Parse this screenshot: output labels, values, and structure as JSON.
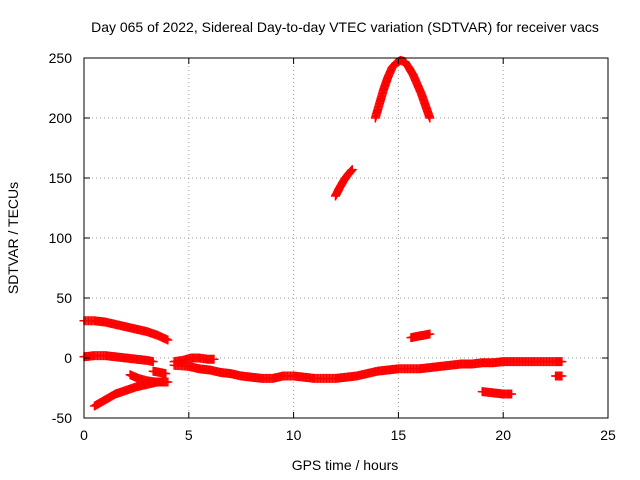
{
  "chart_data": {
    "type": "scatter",
    "title": "Day 065 of 2022, Sidereal Day-to-day VTEC variation (SDTVAR) for receiver vacs",
    "xlabel": "GPS time / hours",
    "ylabel": "SDTVAR / TECUs",
    "xlim": [
      0,
      25
    ],
    "ylim": [
      -50,
      250
    ],
    "xticks": [
      0,
      5,
      10,
      15,
      20,
      25
    ],
    "yticks": [
      -50,
      0,
      50,
      100,
      150,
      200,
      250
    ],
    "grid": true,
    "marker": "plus",
    "colors": {
      "series": "#ff0000",
      "grid": "#a0a0a0",
      "axes": "#000000"
    },
    "series": [
      {
        "x": [
          0.0,
          0.5,
          1.0,
          1.5,
          2.0,
          2.5,
          3.0,
          3.5,
          4.0
        ],
        "y": [
          31,
          31,
          30,
          28,
          26,
          24,
          22,
          19,
          15
        ]
      },
      {
        "x": [
          0.0,
          0.5,
          1.0,
          1.5,
          2.0,
          2.5,
          3.0,
          3.3
        ],
        "y": [
          1,
          2,
          2,
          1,
          0,
          -1,
          -2,
          -3
        ]
      },
      {
        "x": [
          0.5,
          1.0,
          1.5,
          2.0,
          2.5,
          3.0,
          3.5,
          4.0
        ],
        "y": [
          -40,
          -35,
          -30,
          -27,
          -24,
          -22,
          -20,
          -20
        ]
      },
      {
        "x": [
          2.2,
          2.6,
          3.0,
          3.4,
          3.8
        ],
        "y": [
          -14,
          -17,
          -19,
          -20,
          -20
        ]
      },
      {
        "x": [
          3.3,
          3.6,
          3.9
        ],
        "y": [
          -11,
          -12,
          -13
        ]
      },
      {
        "x": [
          4.3,
          4.7,
          5.1,
          5.5,
          5.9,
          6.2
        ],
        "y": [
          -3,
          -2,
          0,
          0,
          -1,
          -1
        ]
      },
      {
        "x": [
          4.3,
          5.0,
          5.5,
          6.0,
          6.5,
          7.0,
          7.5,
          8.0,
          8.5,
          9.0,
          9.5,
          10.0,
          10.5,
          11.0,
          11.5,
          12.0,
          12.5,
          13.0,
          13.5,
          14.0,
          14.5,
          15.0,
          15.5,
          16.0,
          16.5,
          17.0,
          17.5,
          18.0,
          18.5,
          19.0,
          19.5,
          20.0,
          20.5,
          21.0,
          21.5,
          22.0,
          22.5,
          22.8
        ],
        "y": [
          -6,
          -7,
          -9,
          -10,
          -12,
          -13,
          -15,
          -16,
          -17,
          -17,
          -15,
          -15,
          -16,
          -17,
          -17,
          -17,
          -16,
          -15,
          -13,
          -11,
          -10,
          -9,
          -9,
          -9,
          -8,
          -7,
          -6,
          -5,
          -5,
          -4,
          -4,
          -3,
          -3,
          -3,
          -3,
          -3,
          -3,
          -3
        ]
      },
      {
        "x": [
          12.0,
          12.2,
          12.4,
          12.6,
          12.8
        ],
        "y": [
          135,
          142,
          148,
          153,
          157
        ]
      },
      {
        "x": [
          13.9,
          14.1,
          14.3,
          14.5,
          14.7,
          14.9,
          15.1,
          15.3,
          15.5,
          15.7,
          15.9,
          16.1,
          16.3,
          16.5
        ],
        "y": [
          200,
          212,
          224,
          234,
          242,
          246,
          248,
          247,
          242,
          236,
          228,
          220,
          210,
          200
        ]
      },
      {
        "x": [
          15.6,
          15.9,
          16.2,
          16.5
        ],
        "y": [
          17,
          18,
          19,
          20
        ]
      },
      {
        "x": [
          19.0,
          19.5,
          20.0,
          20.4
        ],
        "y": [
          -28,
          -29,
          -30,
          -30
        ]
      },
      {
        "x": [
          22.5,
          22.8
        ],
        "y": [
          -15,
          -15
        ]
      }
    ]
  }
}
